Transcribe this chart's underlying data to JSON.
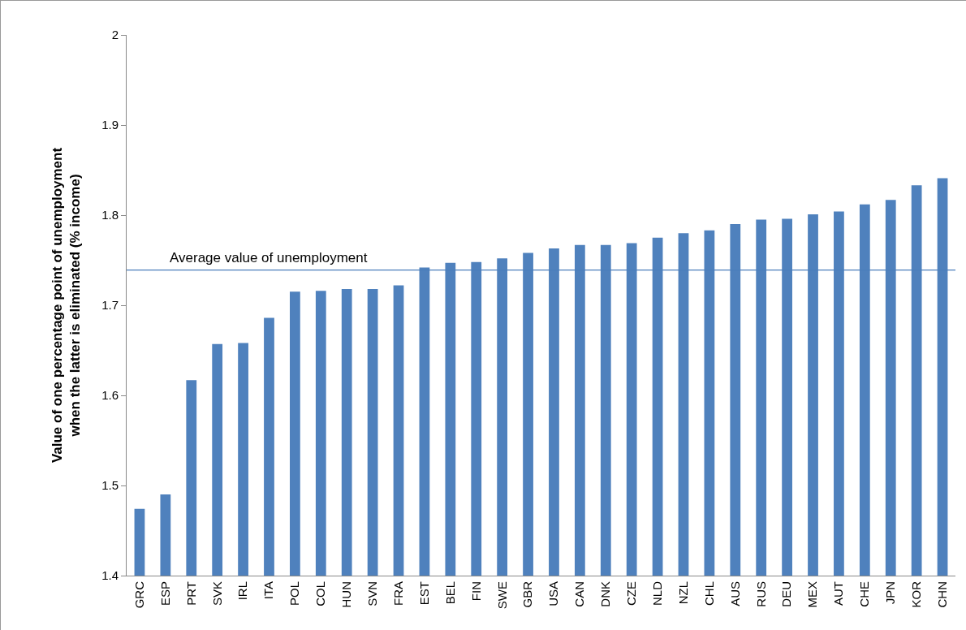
{
  "chart_data": {
    "type": "bar",
    "ylabel": "Value of one percentage point of unemployment when the latter is eliminated (% income)",
    "categories": [
      "GRC",
      "ESP",
      "PRT",
      "SVK",
      "IRL",
      "ITA",
      "POL",
      "COL",
      "HUN",
      "SVN",
      "FRA",
      "EST",
      "BEL",
      "FIN",
      "SWE",
      "GBR",
      "USA",
      "CAN",
      "DNK",
      "CZE",
      "NLD",
      "NZL",
      "CHL",
      "AUS",
      "RUS",
      "DEU",
      "MEX",
      "AUT",
      "CHE",
      "JPN",
      "KOR",
      "CHN"
    ],
    "values": [
      1.474,
      1.49,
      1.617,
      1.657,
      1.658,
      1.686,
      1.715,
      1.716,
      1.718,
      1.718,
      1.722,
      1.742,
      1.747,
      1.748,
      1.752,
      1.758,
      1.763,
      1.767,
      1.767,
      1.769,
      1.775,
      1.78,
      1.783,
      1.79,
      1.795,
      1.796,
      1.801,
      1.804,
      1.812,
      1.817,
      1.833,
      1.841
    ],
    "color": "#4f81bd",
    "ylim": [
      1.4,
      2.0
    ],
    "yticks": [
      1.4,
      1.5,
      1.6,
      1.7,
      1.8,
      1.9,
      2
    ],
    "ref_lines": [
      {
        "axis": "y",
        "value": 1.739,
        "label": "Average value of unemployment",
        "color": "#4a7ebb"
      }
    ],
    "grid": false,
    "legend": false
  }
}
